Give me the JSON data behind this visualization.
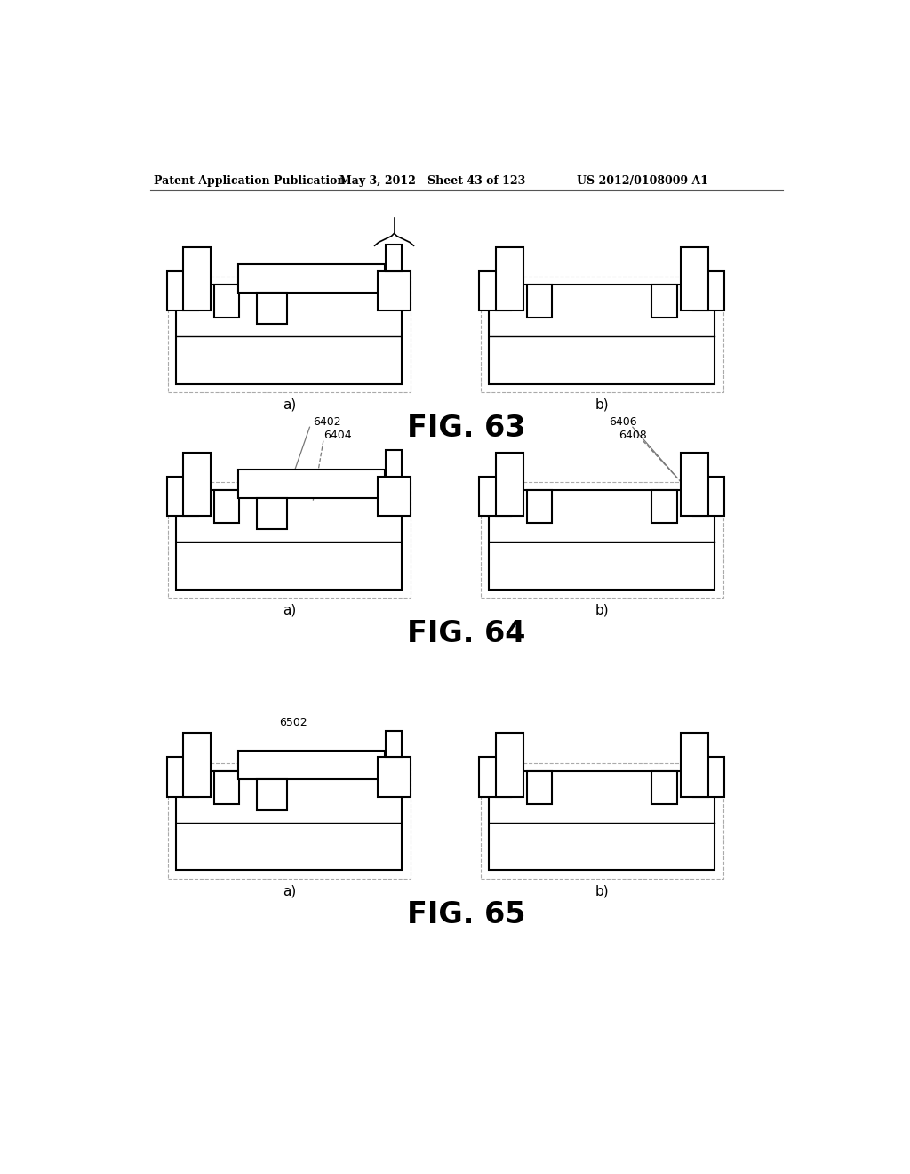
{
  "header_left": "Patent Application Publication",
  "header_mid": "May 3, 2012   Sheet 43 of 123",
  "header_right": "US 2012/0108009 A1",
  "fig63_label": "FIG. 63",
  "fig64_label": "FIG. 64",
  "fig65_label": "FIG. 65",
  "label_a": "a)",
  "label_b": "b)",
  "bg_color": "#ffffff",
  "line_color": "#000000"
}
